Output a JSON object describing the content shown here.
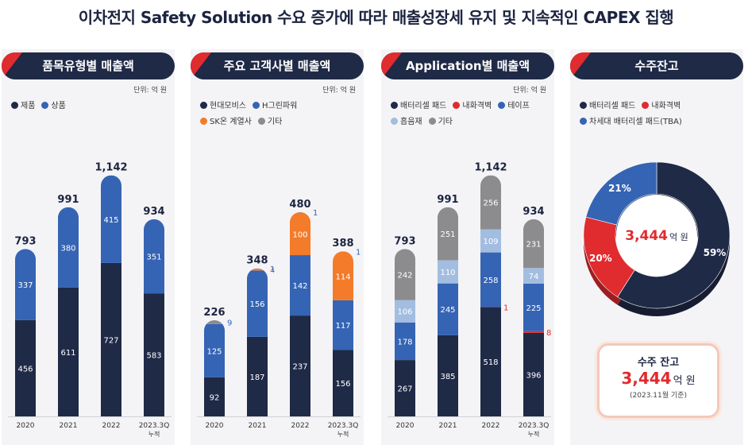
{
  "title": "이차전지 Safety Solution 수요 증가에 따라 매출성장세 유지 및 지속적인 CAPEX 집행",
  "colors": {
    "navy": "#1f2a47",
    "blue": "#3564b4",
    "orange": "#f47b2a",
    "gray": "#8c8c8e",
    "lightblue": "#a3bde0",
    "red": "#e02b2f"
  },
  "panels": [
    {
      "header": "품목유형별 매출액",
      "unit": "단위: 억 원"
    },
    {
      "header": "주요 고객사별 매출액",
      "unit": "단위: 억 원"
    },
    {
      "header": "Application별 매출액",
      "unit": "단위: 억 원"
    },
    {
      "header": "수주잔고"
    }
  ],
  "chart_data": [
    {
      "type": "bar",
      "title": "품목유형별 매출액",
      "categories": [
        "2020",
        "2021",
        "2022",
        "2023.3Q"
      ],
      "category_note": "누적",
      "series": [
        {
          "name": "제품",
          "values": [
            456,
            611,
            727,
            583
          ],
          "color": "#1f2a47"
        },
        {
          "name": "상품",
          "values": [
            337,
            380,
            415,
            351
          ],
          "color": "#3564b4"
        }
      ],
      "totals": [
        793,
        991,
        1142,
        934
      ],
      "ylim": [
        0,
        1250
      ]
    },
    {
      "type": "bar",
      "title": "주요 고객사별 매출액",
      "categories": [
        "2020",
        "2021",
        "2022",
        "2023.3Q"
      ],
      "category_note": "누적",
      "series": [
        {
          "name": "현대모비스",
          "values": [
            92,
            187,
            237,
            156
          ],
          "color": "#1f2a47"
        },
        {
          "name": "H그린파워",
          "values": [
            125,
            156,
            142,
            117
          ],
          "color": "#3564b4"
        },
        {
          "name": "SK온 계열사",
          "values": [
            0,
            4,
            100,
            114
          ],
          "color": "#f47b2a"
        },
        {
          "name": "기타",
          "values": [
            9,
            1,
            1,
            1
          ],
          "color": "#8c8c8e"
        }
      ],
      "totals": [
        226,
        348,
        480,
        388
      ],
      "ylim": [
        0,
        620
      ]
    },
    {
      "type": "bar",
      "title": "Application별 매출액",
      "categories": [
        "2020",
        "2021",
        "2022",
        "2023.3Q"
      ],
      "category_note": "누적",
      "series": [
        {
          "name": "배터리셀 패드",
          "values": [
            267,
            385,
            518,
            396
          ],
          "color": "#1f2a47"
        },
        {
          "name": "내화격벽",
          "values": [
            0,
            0,
            1,
            8
          ],
          "color": "#e02b2f"
        },
        {
          "name": "테이프",
          "values": [
            178,
            245,
            258,
            225
          ],
          "color": "#3564b4"
        },
        {
          "name": "흡음재",
          "values": [
            106,
            110,
            109,
            74
          ],
          "color": "#a3bde0"
        },
        {
          "name": "기타",
          "values": [
            242,
            251,
            256,
            231
          ],
          "color": "#8c8c8e"
        }
      ],
      "totals": [
        793,
        991,
        1142,
        934
      ],
      "ylim": [
        0,
        1250
      ]
    },
    {
      "type": "pie",
      "title": "수주잔고",
      "categories": [
        "배터리셀 패드",
        "내화격벽",
        "차세대 배터리셀 패드(TBA)"
      ],
      "values": [
        59,
        20,
        21
      ],
      "value_unit": "%",
      "colors": [
        "#1f2a47",
        "#e02b2f",
        "#3564b4"
      ],
      "center_value": "3,444",
      "center_unit": "억 원"
    }
  ],
  "backlog_box": {
    "label": "수주 잔고",
    "value": "3,444",
    "unit": "억 원",
    "note": "(2023.11월 기준)"
  }
}
